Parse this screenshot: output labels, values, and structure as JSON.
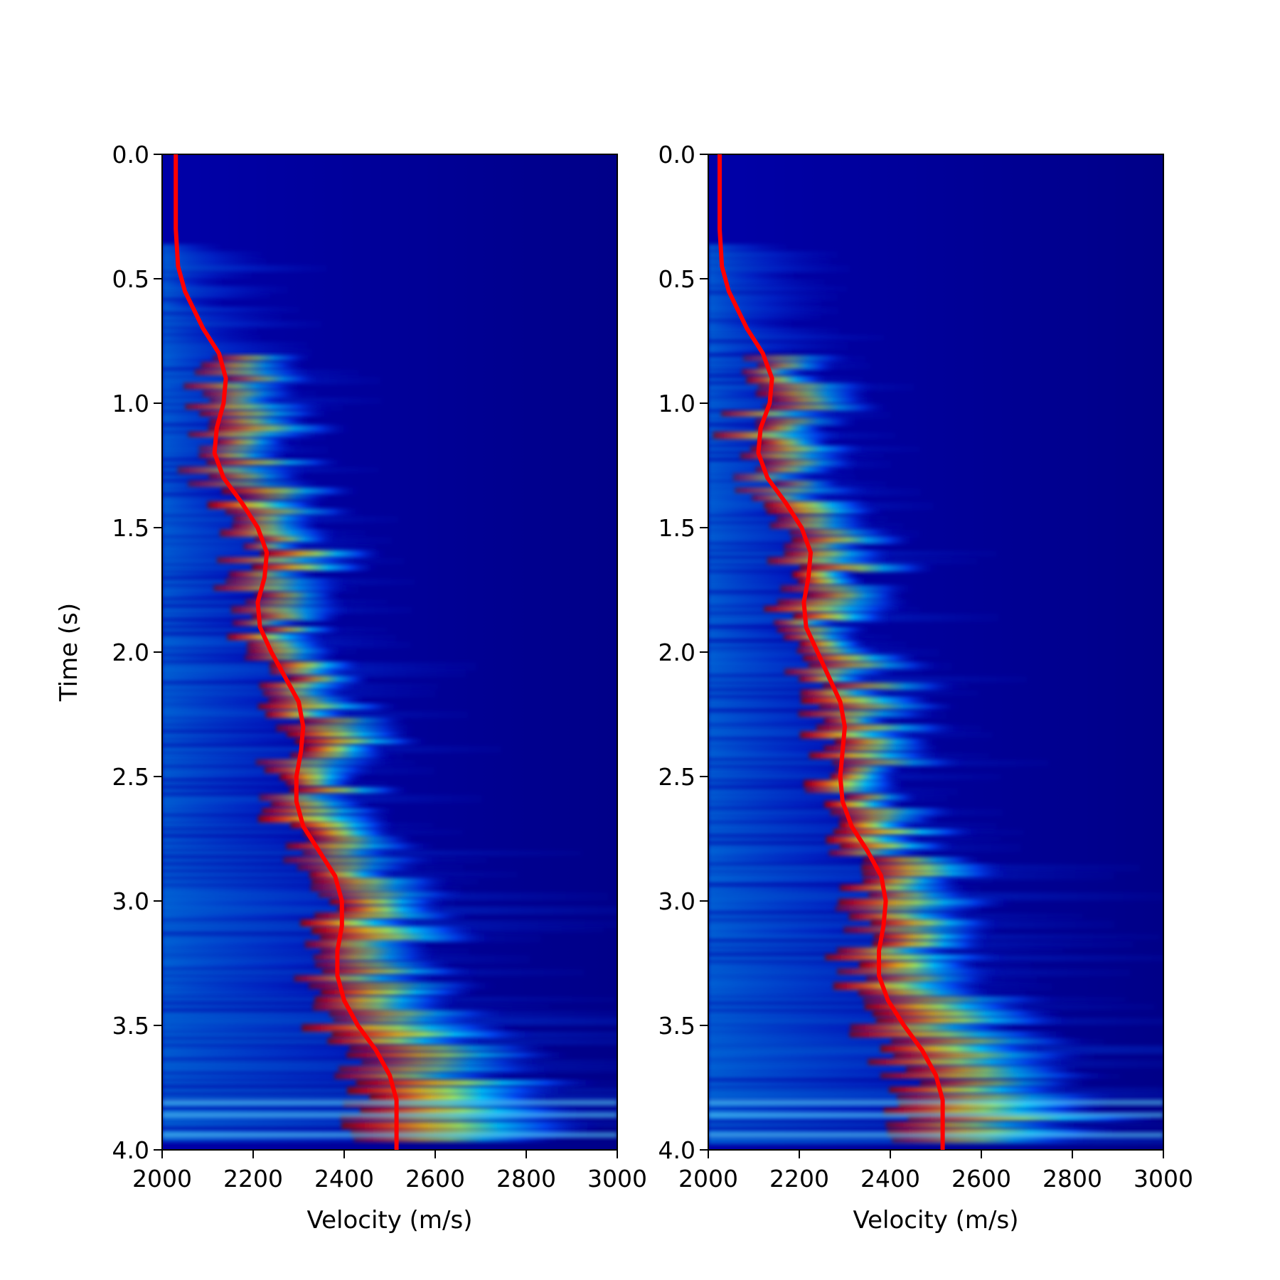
{
  "chart_data": [
    {
      "type": "heatmap",
      "title": "",
      "xlabel": "Velocity (m/s)",
      "ylabel": "Time (s)",
      "xlim": [
        2000,
        3000
      ],
      "ylim": [
        0.0,
        4.0
      ],
      "y_inverted": true,
      "grid": false,
      "colormap": "jet",
      "xticks": [
        "2000",
        "2200",
        "2400",
        "2600",
        "2800",
        "3000"
      ],
      "yticks": [
        "0.0",
        "0.5",
        "1.0",
        "1.5",
        "2.0",
        "2.5",
        "3.0",
        "3.5",
        "4.0"
      ],
      "overlay_line": {
        "color": "#ff0000",
        "points": [
          {
            "t": 0.0,
            "v": 2030
          },
          {
            "t": 0.3,
            "v": 2030
          },
          {
            "t": 0.45,
            "v": 2035
          },
          {
            "t": 0.55,
            "v": 2050
          },
          {
            "t": 0.7,
            "v": 2090
          },
          {
            "t": 0.8,
            "v": 2125
          },
          {
            "t": 0.9,
            "v": 2140
          },
          {
            "t": 1.0,
            "v": 2135
          },
          {
            "t": 1.1,
            "v": 2120
          },
          {
            "t": 1.2,
            "v": 2115
          },
          {
            "t": 1.3,
            "v": 2135
          },
          {
            "t": 1.4,
            "v": 2175
          },
          {
            "t": 1.5,
            "v": 2210
          },
          {
            "t": 1.6,
            "v": 2230
          },
          {
            "t": 1.7,
            "v": 2225
          },
          {
            "t": 1.8,
            "v": 2210
          },
          {
            "t": 1.9,
            "v": 2215
          },
          {
            "t": 2.0,
            "v": 2240
          },
          {
            "t": 2.1,
            "v": 2270
          },
          {
            "t": 2.2,
            "v": 2300
          },
          {
            "t": 2.3,
            "v": 2310
          },
          {
            "t": 2.4,
            "v": 2305
          },
          {
            "t": 2.5,
            "v": 2295
          },
          {
            "t": 2.6,
            "v": 2295
          },
          {
            "t": 2.7,
            "v": 2310
          },
          {
            "t": 2.8,
            "v": 2345
          },
          {
            "t": 2.9,
            "v": 2380
          },
          {
            "t": 3.0,
            "v": 2395
          },
          {
            "t": 3.1,
            "v": 2395
          },
          {
            "t": 3.2,
            "v": 2385
          },
          {
            "t": 3.3,
            "v": 2385
          },
          {
            "t": 3.4,
            "v": 2400
          },
          {
            "t": 3.5,
            "v": 2430
          },
          {
            "t": 3.6,
            "v": 2470
          },
          {
            "t": 3.7,
            "v": 2500
          },
          {
            "t": 3.8,
            "v": 2515
          },
          {
            "t": 3.9,
            "v": 2515
          },
          {
            "t": 4.0,
            "v": 2515
          }
        ]
      }
    },
    {
      "type": "heatmap",
      "title": "",
      "xlabel": "Velocity (m/s)",
      "ylabel": "",
      "xlim": [
        2000,
        3000
      ],
      "ylim": [
        0.0,
        4.0
      ],
      "y_inverted": true,
      "grid": false,
      "colormap": "jet",
      "xticks": [
        "2000",
        "2200",
        "2400",
        "2600",
        "2800",
        "3000"
      ],
      "yticks": [
        "0.0",
        "0.5",
        "1.0",
        "1.5",
        "2.0",
        "2.5",
        "3.0",
        "3.5",
        "4.0"
      ],
      "overlay_line": {
        "color": "#ff0000",
        "points": [
          {
            "t": 0.0,
            "v": 2025
          },
          {
            "t": 0.3,
            "v": 2025
          },
          {
            "t": 0.45,
            "v": 2030
          },
          {
            "t": 0.55,
            "v": 2045
          },
          {
            "t": 0.7,
            "v": 2085
          },
          {
            "t": 0.8,
            "v": 2120
          },
          {
            "t": 0.9,
            "v": 2140
          },
          {
            "t": 1.0,
            "v": 2135
          },
          {
            "t": 1.1,
            "v": 2115
          },
          {
            "t": 1.2,
            "v": 2110
          },
          {
            "t": 1.3,
            "v": 2130
          },
          {
            "t": 1.4,
            "v": 2170
          },
          {
            "t": 1.5,
            "v": 2205
          },
          {
            "t": 1.6,
            "v": 2225
          },
          {
            "t": 1.7,
            "v": 2220
          },
          {
            "t": 1.8,
            "v": 2210
          },
          {
            "t": 1.9,
            "v": 2215
          },
          {
            "t": 2.0,
            "v": 2240
          },
          {
            "t": 2.1,
            "v": 2265
          },
          {
            "t": 2.2,
            "v": 2290
          },
          {
            "t": 2.3,
            "v": 2300
          },
          {
            "t": 2.4,
            "v": 2295
          },
          {
            "t": 2.5,
            "v": 2290
          },
          {
            "t": 2.6,
            "v": 2295
          },
          {
            "t": 2.7,
            "v": 2315
          },
          {
            "t": 2.8,
            "v": 2350
          },
          {
            "t": 2.9,
            "v": 2380
          },
          {
            "t": 3.0,
            "v": 2390
          },
          {
            "t": 3.1,
            "v": 2385
          },
          {
            "t": 3.2,
            "v": 2375
          },
          {
            "t": 3.3,
            "v": 2375
          },
          {
            "t": 3.4,
            "v": 2395
          },
          {
            "t": 3.5,
            "v": 2430
          },
          {
            "t": 3.6,
            "v": 2470
          },
          {
            "t": 3.7,
            "v": 2500
          },
          {
            "t": 3.8,
            "v": 2515
          },
          {
            "t": 3.9,
            "v": 2515
          },
          {
            "t": 4.0,
            "v": 2515
          }
        ]
      }
    }
  ]
}
